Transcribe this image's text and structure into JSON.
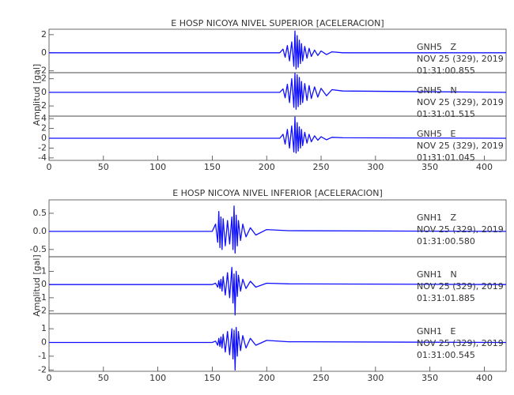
{
  "chart_data": [
    {
      "type": "line",
      "title": "E HOSP NICOYA NIVEL SUPERIOR [ACELERACION]",
      "ylabel": "Amplitud [gal]",
      "color": "#1010ff",
      "xlim": [
        0,
        420
      ],
      "xticks": [
        0,
        50,
        100,
        150,
        200,
        250,
        300,
        350,
        400
      ],
      "x": [
        0,
        212,
        215,
        217,
        219,
        221,
        223,
        225,
        226,
        227,
        228,
        229,
        230,
        231,
        232,
        233,
        235,
        237,
        239,
        241,
        244,
        247,
        250,
        255,
        260,
        270,
        420
      ],
      "series": [
        {
          "name": "GNH5   Z",
          "date": "NOV 25 (329), 2019",
          "time": "01:31:00.855",
          "ylim": [
            -2.2,
            2.6
          ],
          "yticks": [
            -2,
            0,
            2
          ],
          "values": [
            0,
            0,
            0.4,
            -0.5,
            0.8,
            -0.9,
            1.2,
            -1.5,
            2.4,
            -1.8,
            1.9,
            -1.6,
            1.4,
            -1.2,
            1.0,
            -0.9,
            0.7,
            -0.6,
            0.5,
            -0.4,
            0.3,
            -0.3,
            0.2,
            -0.2,
            0.1,
            0,
            0
          ]
        },
        {
          "name": "GNH5   N",
          "date": "NOV 25 (329), 2019",
          "time": "01:31:01.515",
          "ylim": [
            -3.5,
            2.9
          ],
          "yticks": [
            -2,
            0,
            2
          ],
          "values": [
            0,
            0,
            0.5,
            -0.8,
            1.2,
            -1.5,
            2.0,
            -2.2,
            2.8,
            -2.5,
            2.6,
            -2.1,
            2.2,
            -1.8,
            1.6,
            -1.5,
            1.3,
            -1.2,
            1.0,
            -0.9,
            0.8,
            -0.7,
            0.6,
            -0.5,
            0.4,
            0.2,
            0
          ]
        },
        {
          "name": "GNH5   E",
          "date": "NOV 25 (329), 2019",
          "time": "01:31:01.045",
          "ylim": [
            -4.5,
            4.5
          ],
          "yticks": [
            -4,
            -2,
            0,
            2,
            4
          ],
          "values": [
            0,
            0,
            0.8,
            -1.2,
            1.8,
            -2.0,
            2.5,
            -2.8,
            4.3,
            -3.0,
            3.2,
            -2.6,
            2.3,
            -2.0,
            1.8,
            -1.5,
            1.2,
            -1.0,
            0.8,
            -0.7,
            0.5,
            -0.4,
            0.3,
            -0.3,
            0.2,
            0.1,
            0
          ]
        }
      ]
    },
    {
      "type": "line",
      "title": "E HOSP NICOYA NIVEL INFERIOR [ACELERACION]",
      "ylabel": "Amplitud [gal]",
      "color": "#1010ff",
      "xlim": [
        0,
        420
      ],
      "xticks": [
        0,
        50,
        100,
        150,
        200,
        250,
        300,
        350,
        400
      ],
      "x": [
        0,
        150,
        153,
        155,
        156,
        157,
        158,
        159,
        160,
        162,
        164,
        166,
        168,
        169,
        170,
        171,
        172,
        173,
        174,
        176,
        178,
        181,
        185,
        190,
        200,
        220,
        420
      ],
      "series": [
        {
          "name": "GNH1   Z",
          "date": "NOV 25 (329), 2019",
          "time": "01:31:00.580",
          "ylim": [
            -0.7,
            0.87
          ],
          "yticks": [
            -0.5,
            {
              "value": 0,
              "label": "0.0"
            },
            0.5
          ],
          "values": [
            0,
            0,
            0.2,
            -0.3,
            0.55,
            -0.45,
            0.4,
            -0.5,
            0.35,
            -0.4,
            0.3,
            -0.35,
            0.4,
            -0.5,
            0.7,
            -0.6,
            0.45,
            -0.4,
            0.3,
            -0.25,
            0.2,
            -0.15,
            0.1,
            -0.1,
            0.05,
            0.02,
            0
          ]
        },
        {
          "name": "GNH1   N",
          "date": "NOV 25 (329), 2019",
          "time": "01:31:01.885",
          "ylim": [
            -2.2,
            2.1
          ],
          "yticks": [
            -2,
            -1,
            0,
            1
          ],
          "values": [
            0,
            0,
            0.1,
            -0.2,
            0.3,
            -0.3,
            0.4,
            -0.5,
            0.6,
            -0.8,
            0.9,
            -1.0,
            1.3,
            -1.4,
            0.8,
            -2.3,
            1.0,
            -0.9,
            0.7,
            -0.5,
            0.4,
            -0.3,
            0.25,
            -0.2,
            0.1,
            0.05,
            0
          ]
        },
        {
          "name": "GNH1   E",
          "date": "NOV 25 (329), 2019",
          "time": "01:31:00.545",
          "ylim": [
            -2.1,
            2.1
          ],
          "yticks": [
            -2,
            -1,
            0,
            1
          ],
          "values": [
            0,
            0,
            0.1,
            -0.2,
            0.3,
            -0.3,
            0.4,
            -0.4,
            0.6,
            -0.7,
            0.8,
            -0.9,
            1.0,
            -1.2,
            0.9,
            -2.0,
            1.1,
            -1.0,
            0.8,
            -0.6,
            0.5,
            -0.4,
            0.3,
            -0.2,
            0.15,
            0.05,
            0
          ]
        }
      ]
    }
  ]
}
